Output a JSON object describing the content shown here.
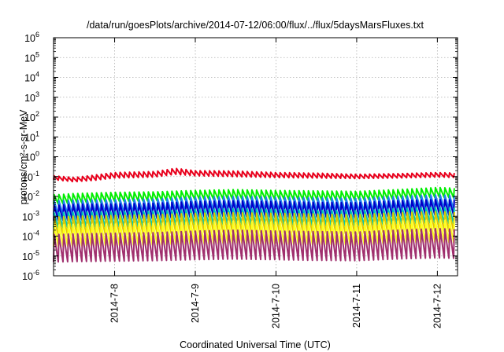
{
  "chart_data": {
    "type": "line",
    "title": "/data/run/goesPlots/archive/2014-07-12/06:00/flux/../flux/5daysMarsFluxes.txt",
    "xlabel": "Coordinated Universal Time (UTC)",
    "ylabel": "protons/cm²-s-sr-MeV",
    "y_scale": "log",
    "ylim": [
      1e-06,
      1000000.0
    ],
    "xlim": [
      "2014-07-07 05:50",
      "2014-07-12 06:00"
    ],
    "grid": true,
    "legend": "none",
    "x_ticks": [
      "2014-7-8",
      "2014-7-9",
      "2014-7-10",
      "2014-7-11",
      "2014-7-12"
    ],
    "y_ticks": [
      {
        "base": "10",
        "exp": "-6"
      },
      {
        "base": "10",
        "exp": "-5"
      },
      {
        "base": "10",
        "exp": "-4"
      },
      {
        "base": "10",
        "exp": "-3"
      },
      {
        "base": "10",
        "exp": "-2"
      },
      {
        "base": "10",
        "exp": "-1"
      },
      {
        "base": "10",
        "exp": "0"
      },
      {
        "base": "10",
        "exp": "1"
      },
      {
        "base": "10",
        "exp": "2"
      },
      {
        "base": "10",
        "exp": "3"
      },
      {
        "base": "10",
        "exp": "4"
      },
      {
        "base": "10",
        "exp": "5"
      },
      {
        "base": "10",
        "exp": "6"
      }
    ],
    "sawtooth_period_hours": 1.4,
    "series": [
      {
        "color": "#e8001c",
        "x": [
          "2014-07-07 05:50",
          "2014-07-07 12:00",
          "2014-07-07 18:00",
          "2014-07-08 00:00",
          "2014-07-08 12:00",
          "2014-07-08 18:00",
          "2014-07-09 00:00",
          "2014-07-09 12:00",
          "2014-07-10 00:00",
          "2014-07-10 12:00",
          "2014-07-11 00:00",
          "2014-07-11 12:00",
          "2014-07-12 00:00",
          "2014-07-12 06:00"
        ],
        "peaks": [
          0.11,
          0.09,
          0.12,
          0.16,
          0.18,
          0.26,
          0.2,
          0.19,
          0.16,
          0.15,
          0.13,
          0.14,
          0.16,
          0.15
        ],
        "troughs": [
          0.07,
          0.055,
          0.065,
          0.085,
          0.095,
          0.13,
          0.11,
          0.1,
          0.09,
          0.085,
          0.08,
          0.085,
          0.095,
          0.09
        ]
      },
      {
        "color": "#00ee00",
        "x": [
          "2014-07-07 05:50",
          "2014-07-07 12:00",
          "2014-07-07 18:00",
          "2014-07-08 00:00",
          "2014-07-08 12:00",
          "2014-07-09 00:00",
          "2014-07-09 12:00",
          "2014-07-10 00:00",
          "2014-07-10 12:00",
          "2014-07-11 00:00",
          "2014-07-11 12:00",
          "2014-07-12 00:00",
          "2014-07-12 06:00"
        ],
        "peaks": [
          0.012,
          0.014,
          0.015,
          0.016,
          0.017,
          0.02,
          0.022,
          0.02,
          0.019,
          0.018,
          0.022,
          0.028,
          0.026
        ],
        "troughs": [
          0.004,
          0.0045,
          0.005,
          0.0055,
          0.006,
          0.007,
          0.0075,
          0.007,
          0.0065,
          0.0065,
          0.0075,
          0.009,
          0.0085
        ]
      },
      {
        "color": "#1e7ff0",
        "x": [
          "2014-07-07 05:50",
          "2014-07-07 12:00",
          "2014-07-08 00:00",
          "2014-07-08 12:00",
          "2014-07-09 00:00",
          "2014-07-09 12:00",
          "2014-07-10 00:00",
          "2014-07-10 12:00",
          "2014-07-11 00:00",
          "2014-07-11 12:00",
          "2014-07-12 00:00",
          "2014-07-12 06:00"
        ],
        "peaks": [
          0.006,
          0.0065,
          0.007,
          0.0075,
          0.009,
          0.01,
          0.009,
          0.0085,
          0.008,
          0.01,
          0.012,
          0.011
        ],
        "troughs": [
          0.0012,
          0.0013,
          0.0014,
          0.0015,
          0.0018,
          0.002,
          0.0018,
          0.0017,
          0.0016,
          0.002,
          0.0024,
          0.0022
        ]
      },
      {
        "color": "#0000c8",
        "x": [
          "2014-07-07 05:50",
          "2014-07-07 12:00",
          "2014-07-08 00:00",
          "2014-07-08 12:00",
          "2014-07-09 00:00",
          "2014-07-09 12:00",
          "2014-07-10 00:00",
          "2014-07-10 12:00",
          "2014-07-11 00:00",
          "2014-07-11 12:00",
          "2014-07-12 00:00",
          "2014-07-12 06:00"
        ],
        "peaks": [
          0.0035,
          0.004,
          0.0042,
          0.0045,
          0.0055,
          0.006,
          0.0055,
          0.005,
          0.0048,
          0.006,
          0.007,
          0.0065
        ],
        "troughs": [
          0.0006,
          0.00065,
          0.0007,
          0.00075,
          0.0009,
          0.001,
          0.0009,
          0.00085,
          0.0008,
          0.001,
          0.0012,
          0.0011
        ]
      },
      {
        "color": "#00c8b4",
        "x": [
          "2014-07-07 05:50",
          "2014-07-07 12:00",
          "2014-07-08 00:00",
          "2014-07-08 12:00",
          "2014-07-09 00:00",
          "2014-07-09 12:00",
          "2014-07-10 00:00",
          "2014-07-10 12:00",
          "2014-07-11 00:00",
          "2014-07-11 12:00",
          "2014-07-12 00:00",
          "2014-07-12 06:00"
        ],
        "peaks": [
          0.0015,
          0.0016,
          0.0017,
          0.0018,
          0.0022,
          0.0024,
          0.0022,
          0.002,
          0.0019,
          0.0024,
          0.0028,
          0.0026
        ],
        "troughs": [
          0.00025,
          0.00027,
          0.00028,
          0.0003,
          0.00036,
          0.0004,
          0.00036,
          0.00034,
          0.00032,
          0.0004,
          0.00046,
          0.00042
        ]
      },
      {
        "color": "#e0c800",
        "x": [
          "2014-07-07 05:50",
          "2014-07-07 12:00",
          "2014-07-08 00:00",
          "2014-07-08 12:00",
          "2014-07-09 00:00",
          "2014-07-09 12:00",
          "2014-07-10 00:00",
          "2014-07-10 12:00",
          "2014-07-11 00:00",
          "2014-07-11 12:00",
          "2014-07-12 00:00",
          "2014-07-12 06:00"
        ],
        "peaks": [
          0.0009,
          0.001,
          0.0011,
          0.0012,
          0.0014,
          0.0015,
          0.0014,
          0.0013,
          0.0012,
          0.0015,
          0.0017,
          0.0016
        ],
        "troughs": [
          0.0001,
          0.00011,
          0.00012,
          0.00013,
          0.00015,
          0.00016,
          0.00015,
          0.00014,
          0.00013,
          0.00016,
          0.00018,
          0.00017
        ]
      },
      {
        "color": "#ffff1e",
        "x": [
          "2014-07-07 05:50",
          "2014-07-07 12:00",
          "2014-07-08 00:00",
          "2014-07-08 12:00",
          "2014-07-09 00:00",
          "2014-07-09 12:00",
          "2014-07-10 00:00",
          "2014-07-10 12:00",
          "2014-07-11 00:00",
          "2014-07-11 12:00",
          "2014-07-12 00:00",
          "2014-07-12 06:00"
        ],
        "peaks": [
          0.00035,
          0.00038,
          0.0004,
          0.00043,
          0.0005,
          0.00055,
          0.0005,
          0.00047,
          0.00045,
          0.00055,
          0.00062,
          0.0006
        ],
        "troughs": [
          3e-05,
          3.2e-05,
          3.4e-05,
          3.6e-05,
          4e-05,
          4.5e-05,
          4e-05,
          3.8e-05,
          3.6e-05,
          4.5e-05,
          5e-05,
          4.8e-05
        ]
      },
      {
        "color": "#a0306e",
        "x": [
          "2014-07-07 05:50",
          "2014-07-07 12:00",
          "2014-07-08 00:00",
          "2014-07-08 12:00",
          "2014-07-09 00:00",
          "2014-07-09 12:00",
          "2014-07-10 00:00",
          "2014-07-10 12:00",
          "2014-07-11 00:00",
          "2014-07-11 12:00",
          "2014-07-12 00:00",
          "2014-07-12 06:00"
        ],
        "peaks": [
          0.00012,
          0.00013,
          0.00014,
          0.00015,
          0.00018,
          0.0002,
          0.00018,
          0.00017,
          0.00016,
          0.0002,
          0.00024,
          0.00022
        ],
        "troughs": [
          5e-06,
          5.2e-06,
          5.5e-06,
          5.8e-06,
          6.5e-06,
          7e-06,
          6.5e-06,
          6e-06,
          5.8e-06,
          7e-06,
          8e-06,
          7.5e-06
        ]
      }
    ]
  }
}
